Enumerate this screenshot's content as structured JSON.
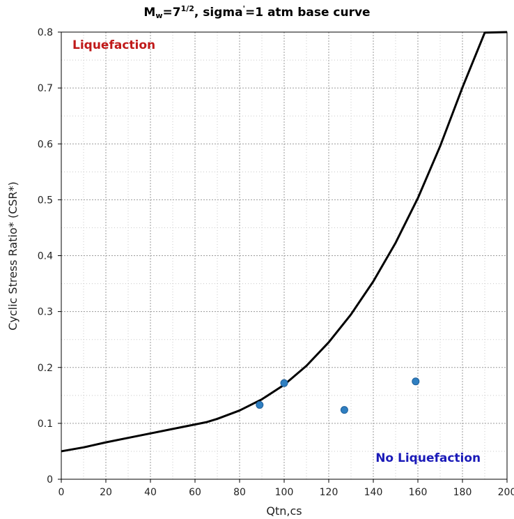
{
  "title": {
    "m": "M",
    "w": "w",
    "eq": "=7",
    "frac": "1/2",
    "rest": ", sigma",
    "prime": "'",
    "rest2": "=1 atm base curve"
  },
  "chart_data": {
    "type": "scatter",
    "xlabel": "Qtn,cs",
    "ylabel": "Cyclic Stress Ratio* (CSR*)",
    "xlim": [
      0,
      200
    ],
    "ylim": [
      0,
      0.8
    ],
    "x_ticks": [
      0,
      20,
      40,
      60,
      80,
      100,
      120,
      140,
      160,
      180,
      200
    ],
    "y_ticks": [
      0,
      0.1,
      0.2,
      0.3,
      0.4,
      0.5,
      0.6,
      0.7,
      0.8
    ],
    "grid": true,
    "series": [
      {
        "kind": "line",
        "color": "#000000",
        "x": [
          0,
          10,
          20,
          30,
          40,
          50,
          60,
          65,
          70,
          80,
          90,
          100,
          110,
          120,
          130,
          140,
          150,
          160,
          170,
          180,
          190,
          200
        ],
        "y": [
          0.05,
          0.057,
          0.066,
          0.074,
          0.082,
          0.09,
          0.098,
          0.102,
          0.108,
          0.123,
          0.143,
          0.169,
          0.203,
          0.245,
          0.295,
          0.354,
          0.423,
          0.503,
          0.596,
          0.701,
          0.799,
          0.815
        ]
      },
      {
        "kind": "points",
        "color": "#2f7fc1",
        "x": [
          89,
          100,
          127,
          159
        ],
        "y": [
          0.133,
          0.172,
          0.124,
          0.175
        ]
      }
    ],
    "annotations": [
      {
        "text": "Liquefaction",
        "color": "#c01a1a",
        "x": 5,
        "y": 0.77
      },
      {
        "text": "No Liquefaction",
        "color": "#1a1ab8",
        "x": 141,
        "y": 0.031
      }
    ]
  }
}
